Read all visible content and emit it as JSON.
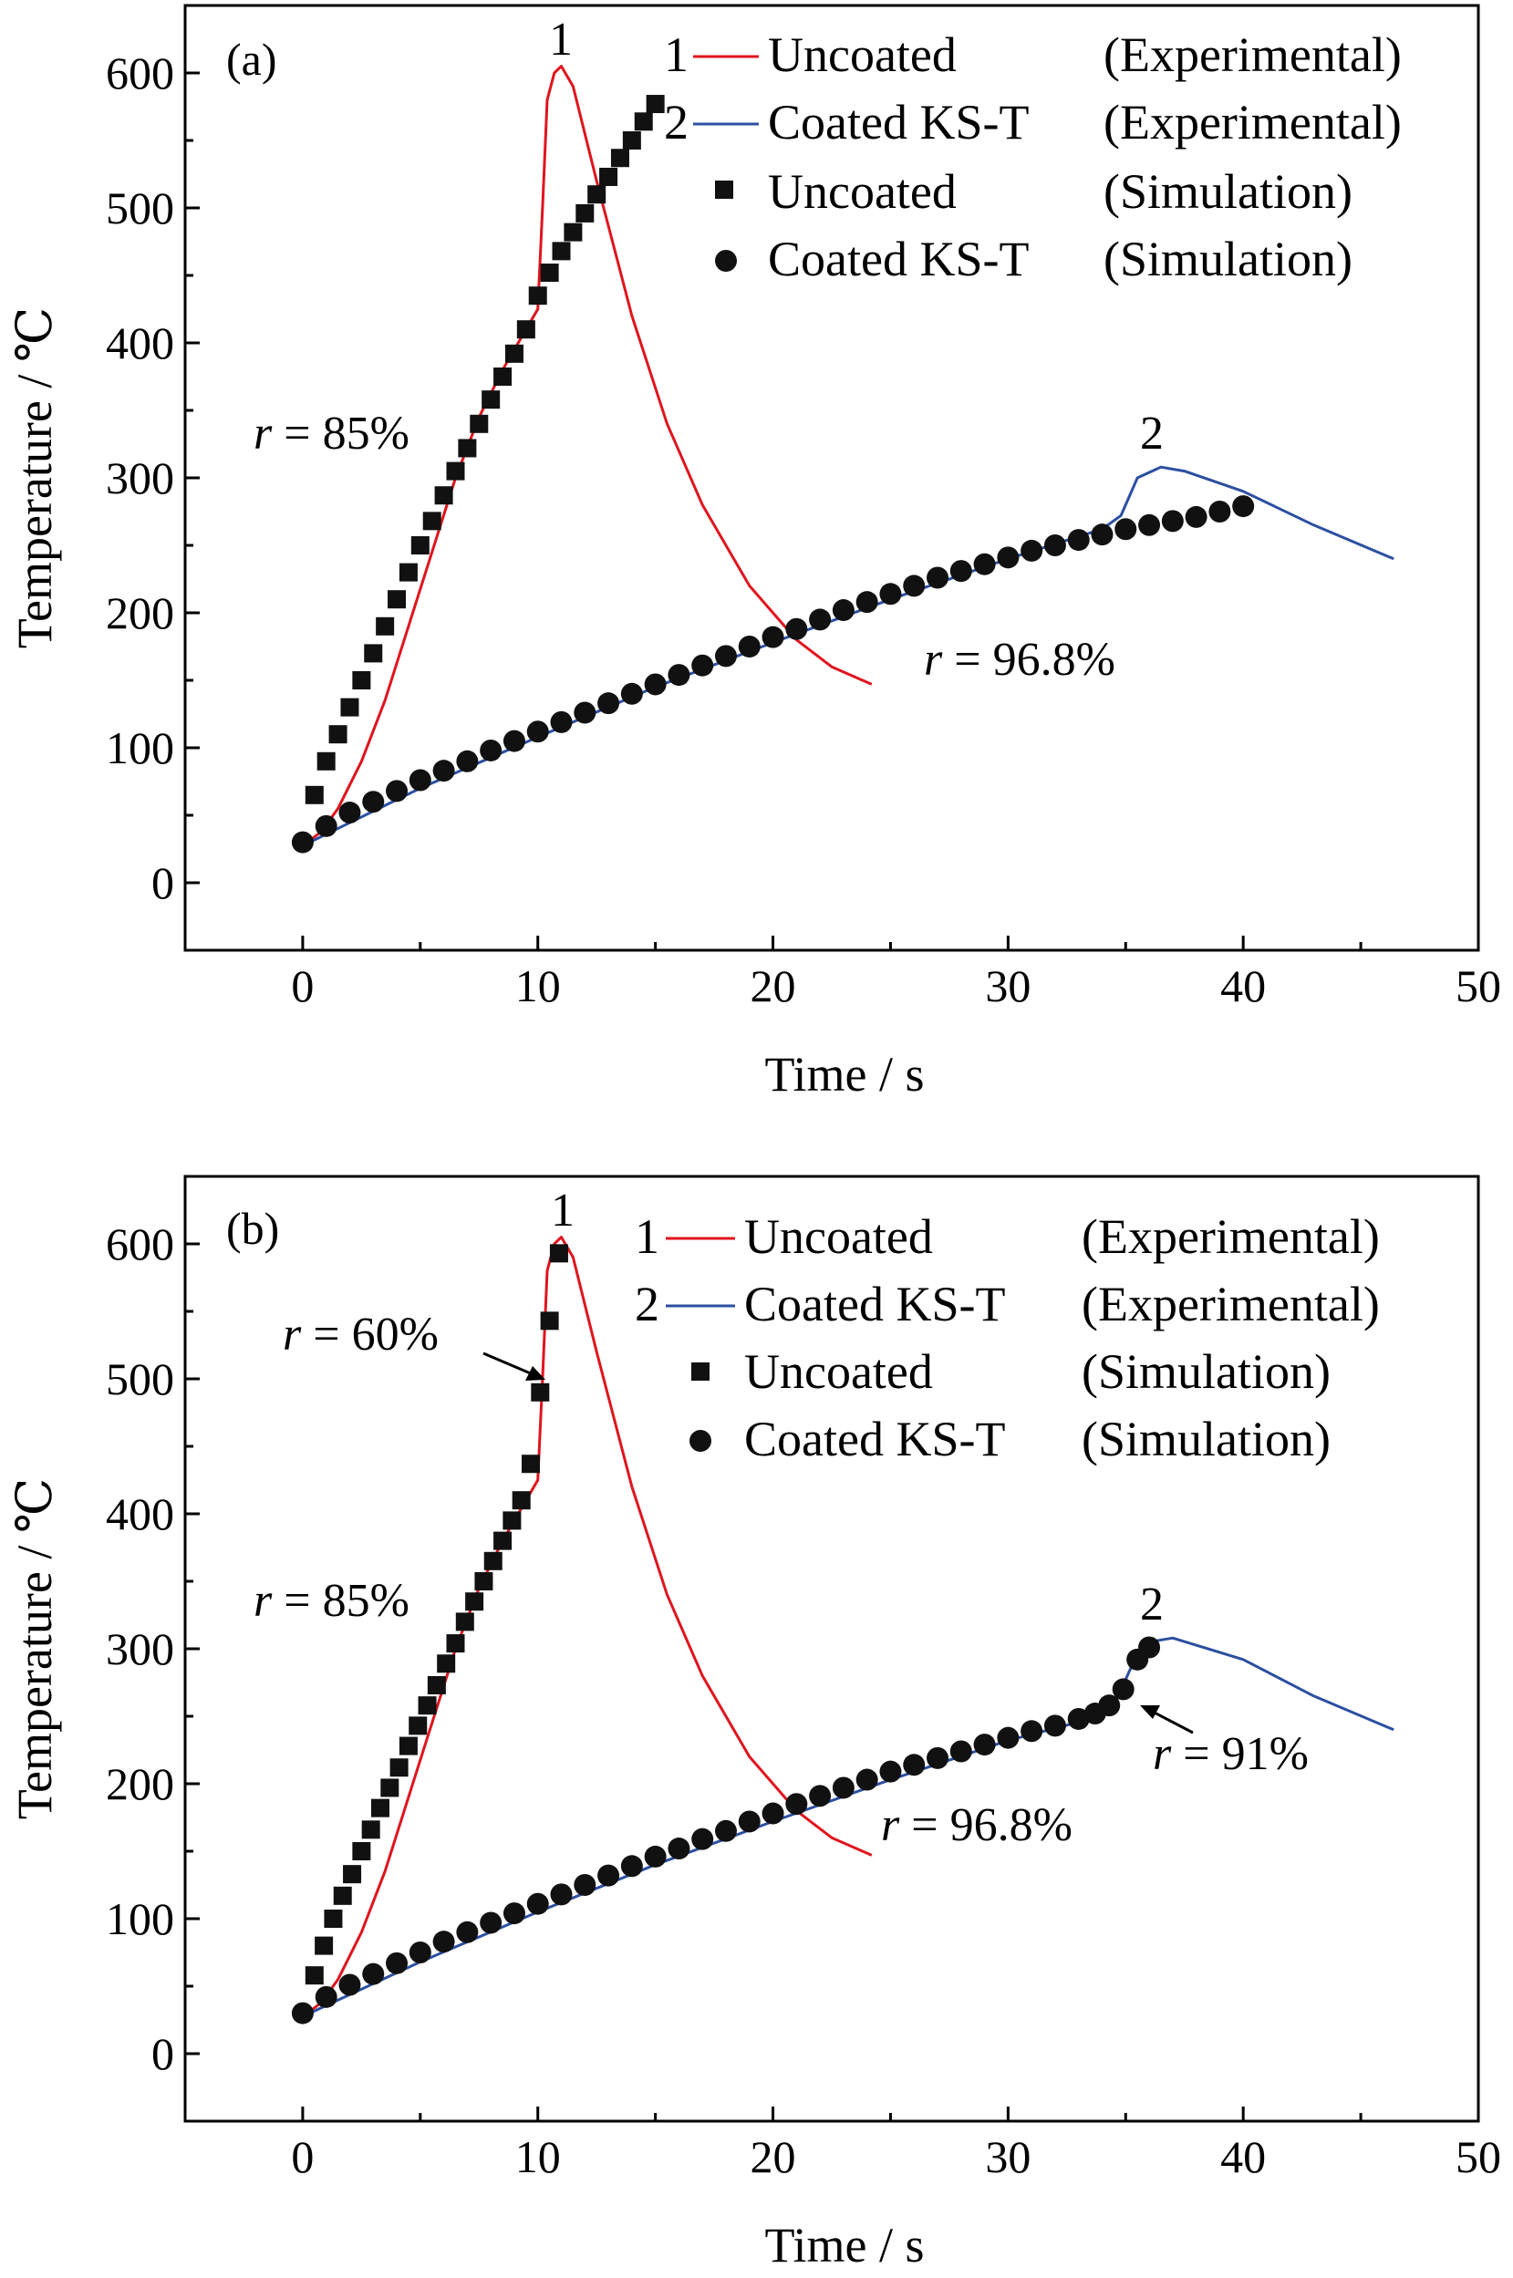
{
  "chart_data": [
    {
      "type": "line",
      "panel_label": "(a)",
      "xlabel": "Time / s",
      "ylabel": "Temperature / ℃",
      "xlim": [
        -5,
        50
      ],
      "ylim": [
        -50,
        650
      ],
      "x_ticks": [
        0,
        10,
        20,
        30,
        40,
        50
      ],
      "y_ticks": [
        0,
        100,
        200,
        300,
        400,
        500,
        600
      ],
      "legend": {
        "position": "top-right",
        "entries": [
          {
            "marker": "1",
            "label": "Uncoated",
            "note": "(Experimental)"
          },
          {
            "marker": "2",
            "label": "Coated KS-T",
            "note": "(Experimental)"
          },
          {
            "marker": "",
            "label": "Uncoated",
            "note": "(Simulation)"
          },
          {
            "marker": "",
            "label": "Coated KS-T",
            "note": "(Simulation)"
          }
        ]
      },
      "series": [
        {
          "id": "uncoated-exp",
          "style": "line",
          "color": "#e0141e",
          "x": [
            0.2,
            0.8,
            1.5,
            2.5,
            3.5,
            4.5,
            5.5,
            6.5,
            7.5,
            8.5,
            9.5,
            10.0,
            10.2,
            10.4,
            10.7,
            11.0,
            11.5,
            12.5,
            14.0,
            15.5,
            17.0,
            19.0,
            21.0,
            22.5,
            24.2
          ],
          "y": [
            30,
            38,
            55,
            90,
            135,
            190,
            245,
            300,
            345,
            380,
            410,
            425,
            500,
            580,
            600,
            605,
            590,
            520,
            420,
            340,
            280,
            220,
            180,
            160,
            147
          ]
        },
        {
          "id": "coated-exp",
          "style": "line",
          "color": "#2c4fa0",
          "x": [
            0.3,
            5,
            10,
            15,
            20,
            25,
            30,
            34,
            34.8,
            35.5,
            36.5,
            37.5,
            40,
            43,
            46.4
          ],
          "y": [
            30,
            70,
            108,
            145,
            178,
            210,
            240,
            262,
            272,
            300,
            308,
            305,
            290,
            265,
            240
          ]
        },
        {
          "id": "uncoated-sim",
          "style": "square",
          "color": "#111111",
          "x": [
            0.5,
            1.0,
            1.5,
            2.0,
            2.5,
            3.0,
            3.5,
            4.0,
            4.5,
            5.0,
            5.5,
            6.0,
            6.5,
            7.0,
            7.5,
            8.0,
            8.5,
            9.0,
            9.5,
            10.0,
            10.5,
            11.0,
            11.5,
            12.0,
            12.5,
            13.0,
            13.5,
            14.0,
            14.5,
            15.0
          ],
          "y": [
            65,
            90,
            110,
            130,
            150,
            170,
            190,
            210,
            230,
            250,
            268,
            287,
            305,
            322,
            340,
            358,
            375,
            392,
            410,
            435,
            452,
            468,
            482,
            496,
            510,
            523,
            537,
            550,
            564,
            577
          ]
        },
        {
          "id": "coated-sim",
          "style": "circle",
          "color": "#111111",
          "x": [
            0,
            1,
            2,
            3,
            4,
            5,
            6,
            7,
            8,
            9,
            10,
            11,
            12,
            13,
            14,
            15,
            16,
            17,
            18,
            19,
            20,
            21,
            22,
            23,
            24,
            25,
            26,
            27,
            28,
            29,
            30,
            31,
            32,
            33,
            34,
            35,
            36,
            37,
            38,
            39,
            40
          ],
          "y": [
            30,
            42,
            52,
            60,
            68,
            76,
            83,
            90,
            98,
            105,
            112,
            119,
            126,
            133,
            140,
            147,
            154,
            161,
            168,
            175,
            182,
            188,
            195,
            202,
            208,
            214,
            220,
            226,
            231,
            236,
            241,
            246,
            250,
            254,
            258,
            262,
            265,
            268,
            271,
            275,
            279
          ]
        }
      ],
      "annotations": [
        {
          "text_var": "r",
          "text": " = 85%",
          "x": -2,
          "y": 330
        },
        {
          "text_var": "r",
          "text": " = 96.8%",
          "x": 26,
          "y": 160
        },
        {
          "text": "1",
          "x": 10.8,
          "y": 612
        },
        {
          "text": "2",
          "x": 36.2,
          "y": 320
        }
      ]
    },
    {
      "type": "line",
      "panel_label": "(b)",
      "xlabel": "Time / s",
      "ylabel": "Temperature / ℃",
      "xlim": [
        -5,
        50
      ],
      "ylim": [
        -50,
        650
      ],
      "x_ticks": [
        0,
        10,
        20,
        30,
        40,
        50
      ],
      "y_ticks": [
        0,
        100,
        200,
        300,
        400,
        500,
        600
      ],
      "legend": {
        "position": "top-right",
        "entries": [
          {
            "marker": "1",
            "label": "Uncoated",
            "note": "(Experimental)"
          },
          {
            "marker": "2",
            "label": "Coated KS-T",
            "note": "(Experimental)"
          },
          {
            "marker": "",
            "label": "Uncoated",
            "note": "(Simulation)"
          },
          {
            "marker": "",
            "label": "Coated KS-T",
            "note": "(Simulation)"
          }
        ]
      },
      "series": [
        {
          "id": "uncoated-exp",
          "style": "line",
          "color": "#e0141e",
          "x": [
            0.2,
            0.8,
            1.5,
            2.5,
            3.5,
            4.5,
            5.5,
            6.5,
            7.5,
            8.5,
            9.5,
            10.0,
            10.2,
            10.4,
            10.7,
            11.0,
            11.5,
            12.5,
            14.0,
            15.5,
            17.0,
            19.0,
            21.0,
            22.5,
            24.2
          ],
          "y": [
            30,
            38,
            55,
            90,
            135,
            190,
            245,
            300,
            345,
            380,
            410,
            425,
            500,
            580,
            600,
            605,
            590,
            520,
            420,
            340,
            280,
            220,
            180,
            160,
            147
          ]
        },
        {
          "id": "coated-exp",
          "style": "line",
          "color": "#2c4fa0",
          "x": [
            0.3,
            5,
            10,
            15,
            20,
            25,
            30,
            33.5,
            34.5,
            35.2,
            36,
            37,
            40,
            43,
            46.4
          ],
          "y": [
            30,
            68,
            105,
            140,
            172,
            203,
            232,
            248,
            258,
            285,
            305,
            308,
            292,
            265,
            240
          ]
        },
        {
          "id": "uncoated-sim",
          "style": "square",
          "color": "#111111",
          "x": [
            0.5,
            0.9,
            1.3,
            1.7,
            2.1,
            2.5,
            2.9,
            3.3,
            3.7,
            4.1,
            4.5,
            4.9,
            5.3,
            5.7,
            6.1,
            6.5,
            6.9,
            7.3,
            7.7,
            8.1,
            8.5,
            8.9,
            9.3,
            9.7,
            10.1,
            10.5,
            10.9
          ],
          "y": [
            58,
            80,
            100,
            117,
            133,
            150,
            166,
            182,
            197,
            212,
            228,
            243,
            258,
            273,
            289,
            304,
            320,
            335,
            350,
            365,
            380,
            395,
            410,
            437,
            490,
            543,
            593
          ]
        },
        {
          "id": "coated-sim",
          "style": "circle",
          "color": "#111111",
          "x": [
            0,
            1,
            2,
            3,
            4,
            5,
            6,
            7,
            8,
            9,
            10,
            11,
            12,
            13,
            14,
            15,
            16,
            17,
            18,
            19,
            20,
            21,
            22,
            23,
            24,
            25,
            26,
            27,
            28,
            29,
            30,
            31,
            32,
            33,
            33.7,
            34.3,
            34.9,
            35.5,
            36.0
          ],
          "y": [
            30,
            42,
            51,
            59,
            67,
            75,
            83,
            90,
            97,
            104,
            111,
            118,
            125,
            132,
            139,
            146,
            152,
            159,
            165,
            172,
            178,
            185,
            191,
            197,
            203,
            209,
            214,
            219,
            224,
            229,
            234,
            239,
            243,
            248,
            252,
            258,
            270,
            292,
            301
          ]
        }
      ],
      "annotations": [
        {
          "text_var": "r",
          "text": " = 60%",
          "x": -1,
          "y": 520
        },
        {
          "text_var": "r",
          "text": " = 85%",
          "x": -2,
          "y": 330
        },
        {
          "text_var": "r",
          "text": " = 96.8%",
          "x": 24.5,
          "y": 160
        },
        {
          "text_var": "r",
          "text": " = 91%",
          "x": 36.5,
          "y": 220
        },
        {
          "text": "1",
          "x": 10.8,
          "y": 612
        },
        {
          "text": "2",
          "x": 36.2,
          "y": 320
        }
      ]
    }
  ]
}
